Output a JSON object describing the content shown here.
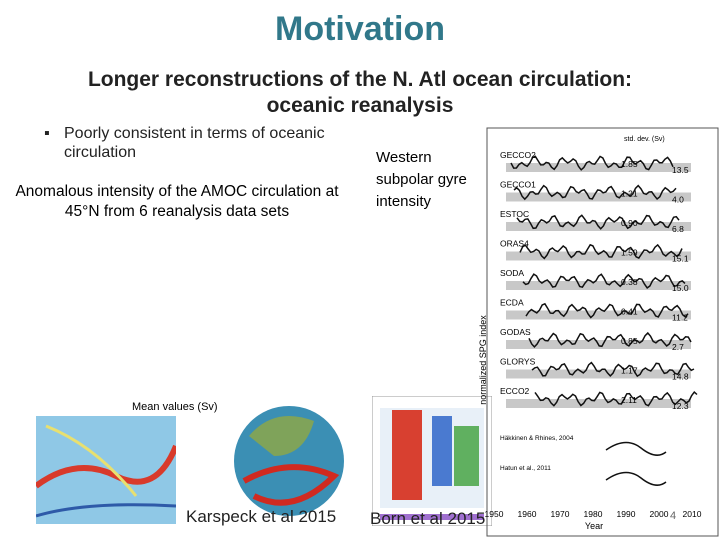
{
  "title": "Motivation",
  "subtitle": [
    "Longer reconstructions of the N. Atl ocean circulation:",
    "oceanic reanalysis"
  ],
  "bullet": "Poorly consistent in terms of oceanic circulation",
  "left_caption": "Anomalous intensity of the AMOC circulation at 45°N from 6 reanalysis data sets",
  "mean_label": "Mean values (Sv)",
  "spg_label": "Western subpolar gyre intensity",
  "citations": [
    "Karspeck et al 2015",
    "Born et al 2015"
  ],
  "page_number": "4",
  "spg_figure": {
    "header": "std. dev. (Sv)",
    "y_label": "normalized SPG index",
    "x_label": "Year",
    "x_ticks": [
      "1950",
      "1960",
      "1970",
      "1980",
      "1990",
      "2000",
      "2010"
    ],
    "rows": [
      {
        "name": "GECCO2",
        "std": "1.85",
        "trend": "13.5"
      },
      {
        "name": "GECCO1",
        "std": "1.21",
        "trend": "4.0"
      },
      {
        "name": "ESTOC",
        "std": "0.90",
        "trend": "6.8"
      },
      {
        "name": "ORAS4",
        "std": "1.59",
        "trend": "15.1"
      },
      {
        "name": "SODA",
        "std": "0.38",
        "trend": "15.0"
      },
      {
        "name": "ECDA",
        "std": "0.41",
        "trend": "11.2"
      },
      {
        "name": "GODAS",
        "std": "0.85",
        "trend": "2.7"
      },
      {
        "name": "GLORYS",
        "std": "1.17",
        "trend": "14.8"
      },
      {
        "name": "ECCO2",
        "std": "2.11",
        "trend": "12.3"
      }
    ],
    "observations": [
      "Häkkinen & Rhines, 2004",
      "Hatun et al., 2011"
    ]
  }
}
